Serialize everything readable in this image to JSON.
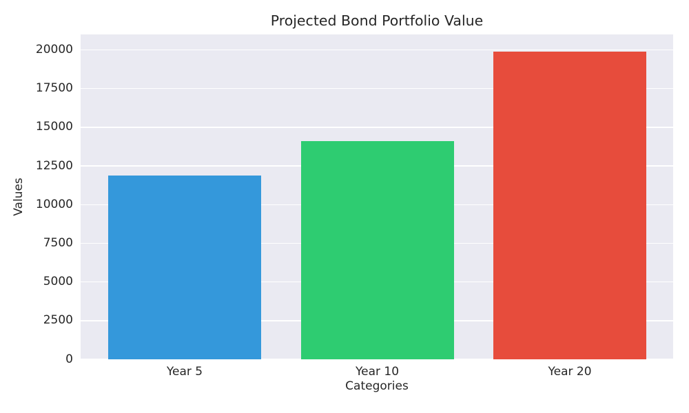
{
  "chart_data": {
    "type": "bar",
    "title": "Projected Bond Portfolio Value",
    "xlabel": "Categories",
    "ylabel": "Values",
    "categories": [
      "Year 5",
      "Year 10",
      "Year 20"
    ],
    "values": [
      11900,
      14100,
      19900
    ],
    "bar_colors": [
      "#3498db",
      "#2ecc71",
      "#e74c3c"
    ],
    "yticks": [
      0,
      2500,
      5000,
      7500,
      10000,
      12500,
      15000,
      17500,
      20000
    ],
    "ylim": [
      0,
      21000
    ],
    "grid": "horizontal-only, white lines on light lavender panel",
    "legend": "none",
    "plot_background_color": "#eaeaf2",
    "grid_color": "#ffffff",
    "text_color": "#262626",
    "figure_background_color": "#ffffff"
  }
}
